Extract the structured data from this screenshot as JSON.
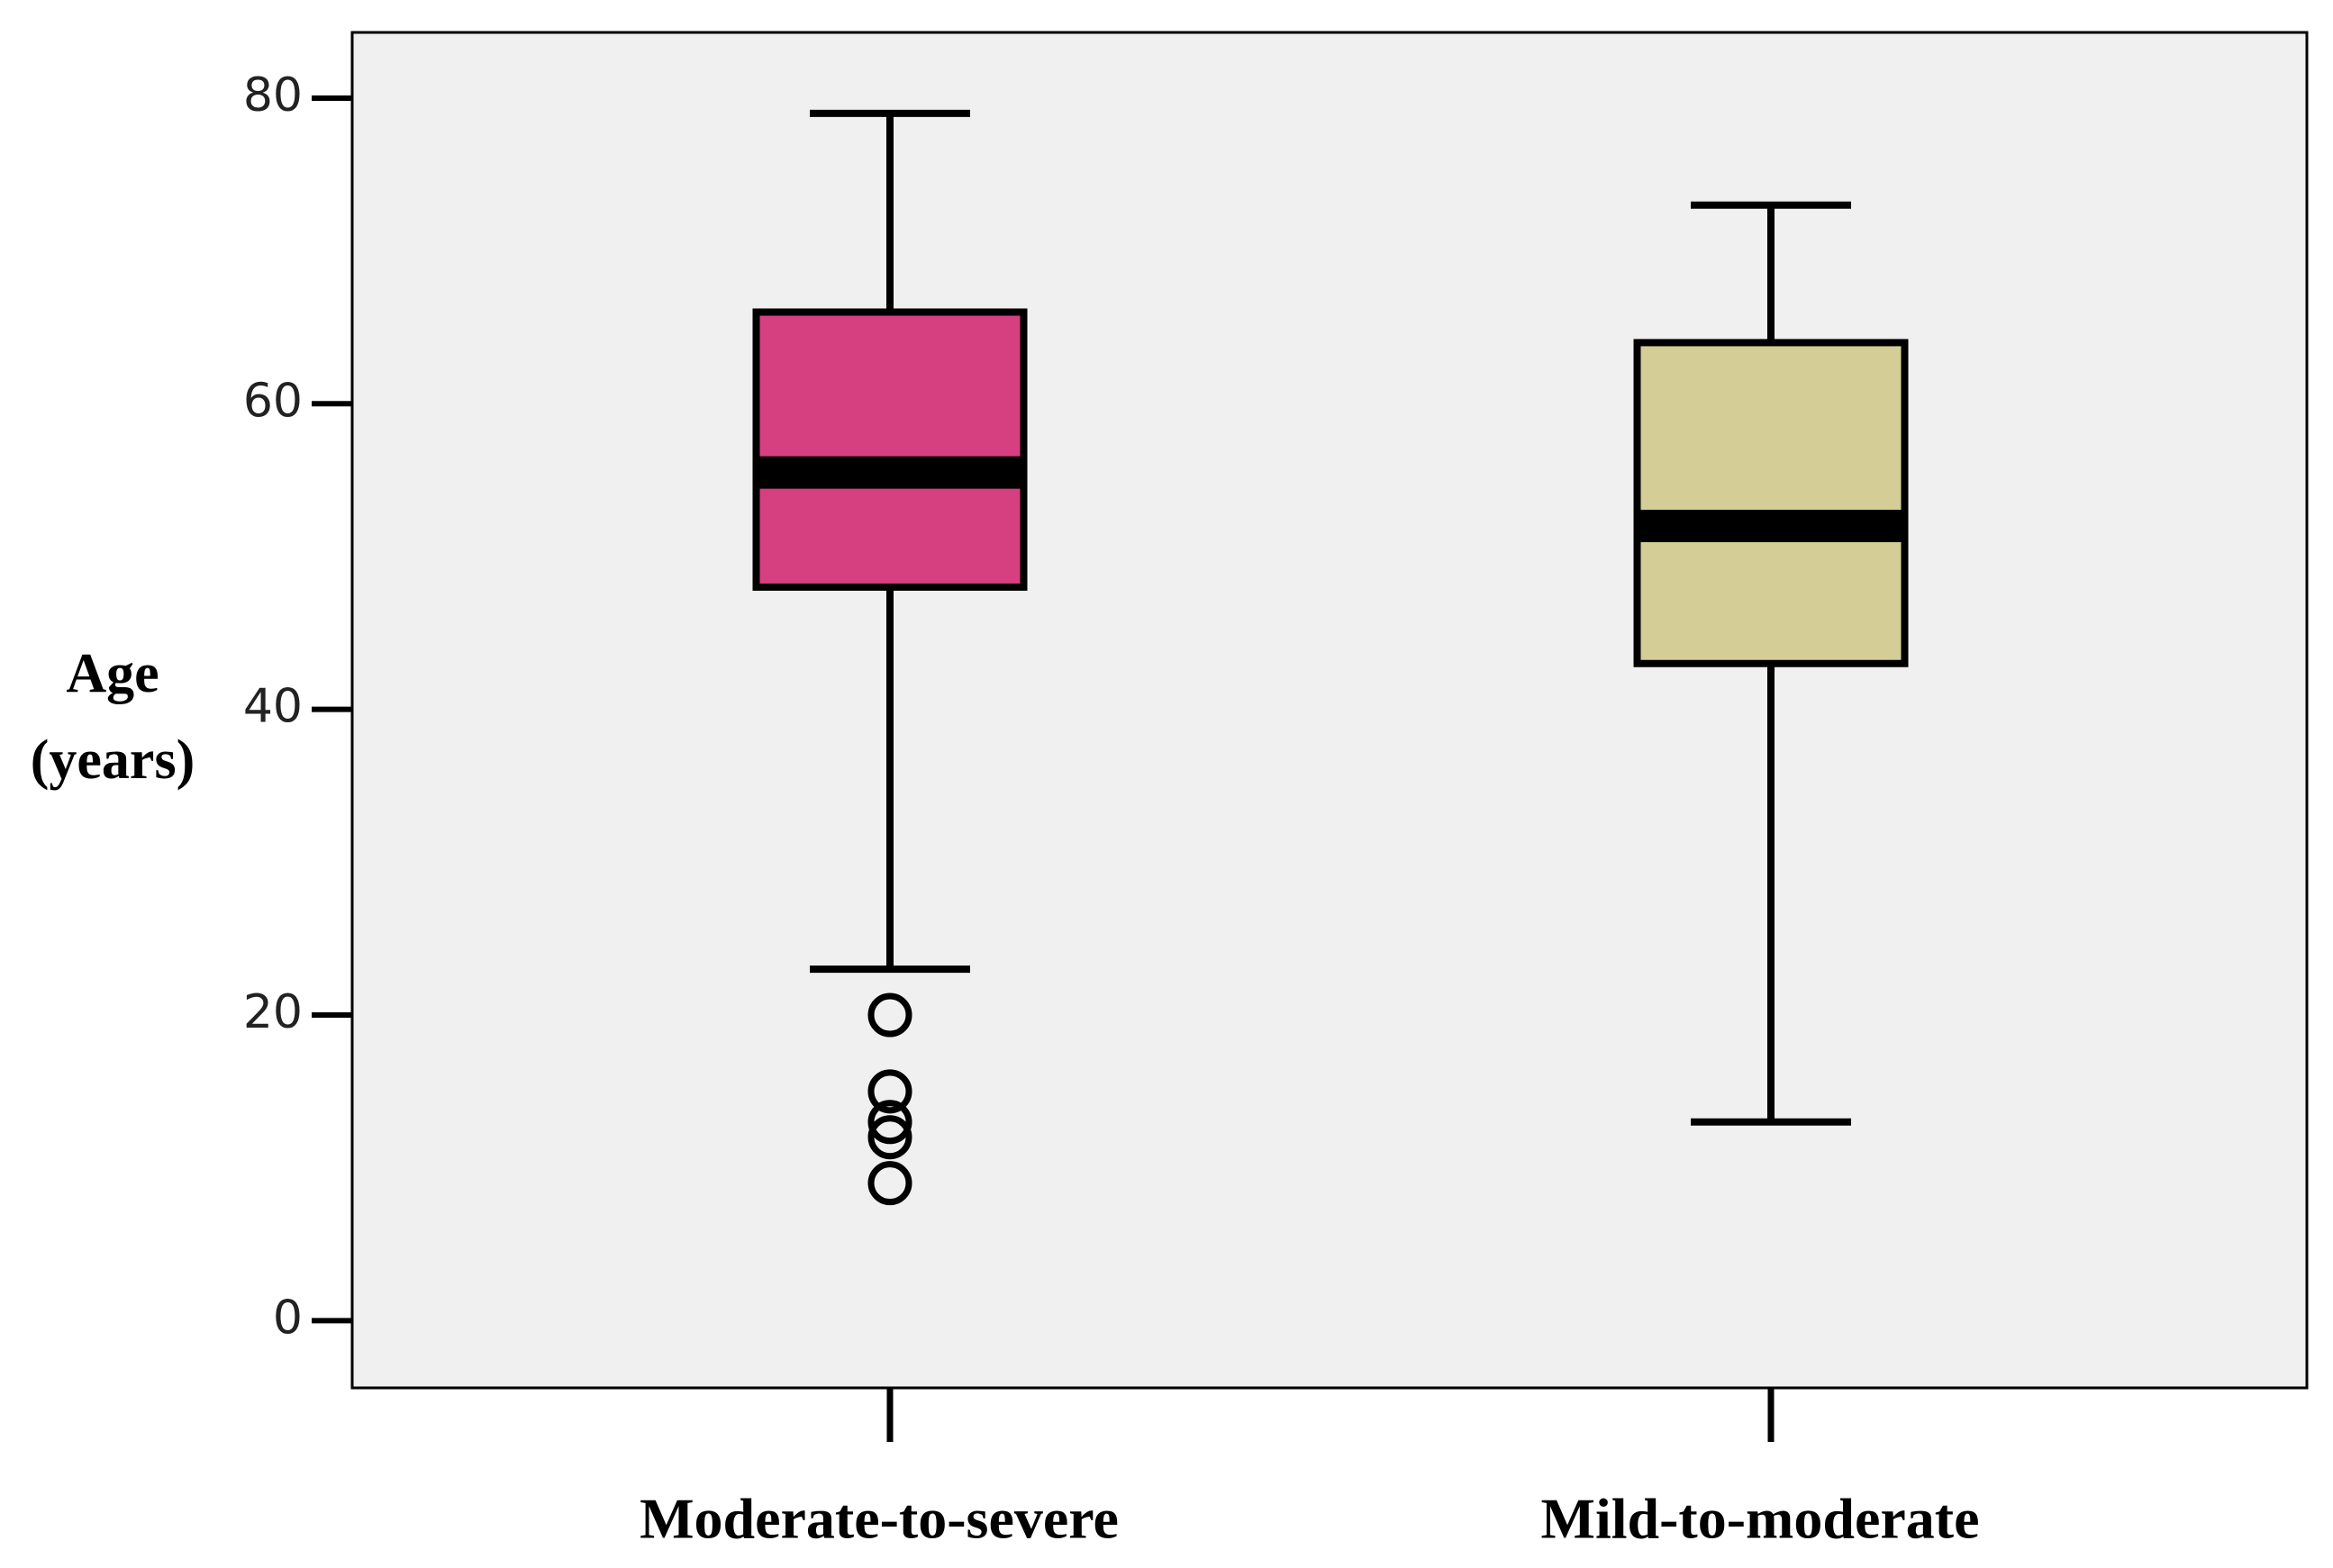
{
  "chart_data": {
    "type": "box",
    "y_label": "Age (years)",
    "categories": [
      "Moderate-to-severe",
      "Mild-to-moderate"
    ],
    "boxes": [
      {
        "whisker_low": 23,
        "q1": 48,
        "median": 55.5,
        "q3": 66,
        "whisker_high": 79,
        "outliers": [
          20,
          15,
          13,
          12,
          9
        ],
        "color": "#d63f80"
      },
      {
        "whisker_low": 13,
        "q1": 43,
        "median": 52,
        "q3": 64,
        "whisker_high": 73,
        "outliers": [],
        "color": "#d4ce96"
      }
    ],
    "ylim": [
      -4.4,
      84.3
    ],
    "yticks": [
      0,
      20,
      40,
      60,
      80
    ]
  }
}
